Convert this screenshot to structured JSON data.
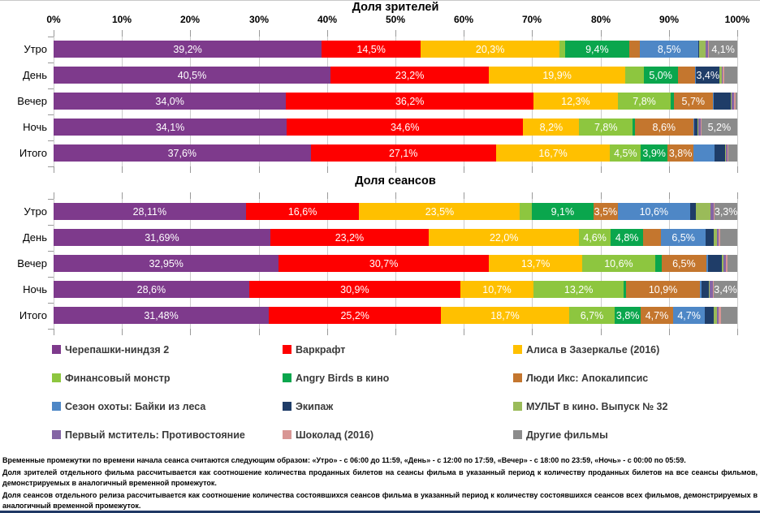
{
  "chart_data": [
    {
      "type": "bar",
      "orientation": "horizontal-stacked",
      "title": "Доля зрителей",
      "categories": [
        "Утро",
        "День",
        "Вечер",
        "Ночь",
        "Итого"
      ],
      "x_axis": {
        "min": 0,
        "max": 100,
        "labels_visible": true,
        "tick_labels": [
          "0%",
          "10%",
          "20%",
          "30%",
          "40%",
          "50%",
          "60%",
          "70%",
          "80%",
          "90%",
          "100%"
        ]
      },
      "series": [
        {
          "film": "Черепашки-ниндзя 2",
          "values": [
            39.2,
            40.5,
            34.0,
            34.1,
            37.6
          ],
          "labels": [
            "39,2%",
            "40,5%",
            "34,0%",
            "34,1%",
            "37,6%"
          ]
        },
        {
          "film": "Варкрафт",
          "values": [
            14.5,
            23.2,
            36.2,
            34.6,
            27.1
          ],
          "labels": [
            "14,5%",
            "23,2%",
            "36,2%",
            "34,6%",
            "27,1%"
          ]
        },
        {
          "film": "Алиса в Зазеркалье (2016)",
          "values": [
            20.3,
            19.9,
            12.3,
            8.2,
            16.7
          ],
          "labels": [
            "20,3%",
            "19,9%",
            "12,3%",
            "8,2%",
            "16,7%"
          ]
        },
        {
          "film": "Финансовый монстр",
          "values": [
            0.8,
            2.7,
            7.8,
            7.8,
            4.5
          ],
          "labels": [
            "",
            "",
            "7,8%",
            "7,8%",
            "4,5%"
          ]
        },
        {
          "film": "Angry Birds в кино",
          "values": [
            9.4,
            5.0,
            0.4,
            0.3,
            3.9
          ],
          "labels": [
            "9,4%",
            "5,0%",
            "",
            "",
            "3,9%"
          ]
        },
        {
          "film": "Люди Икс: Апокалипсис",
          "values": [
            1.6,
            2.5,
            5.7,
            8.6,
            3.8
          ],
          "labels": [
            "",
            "",
            "5,7%",
            "8,6%",
            "3,8%"
          ]
        },
        {
          "film": "Сезон охоты: Байки из леса",
          "values": [
            8.5,
            0.2,
            0.1,
            0.1,
            3.1
          ],
          "labels": [
            "8,5%",
            "",
            "",
            "",
            ""
          ]
        },
        {
          "film": "Экипаж",
          "values": [
            0.1,
            3.4,
            2.5,
            0.5,
            1.5
          ],
          "labels": [
            "",
            "3,4%",
            "",
            "",
            ""
          ]
        },
        {
          "film": "МУЛЬТ в кино. Выпуск № 32",
          "values": [
            1.0,
            0.4,
            0.2,
            0.1,
            0.2
          ],
          "labels": [
            "",
            "",
            "",
            "",
            ""
          ]
        },
        {
          "film": "Первый мститель: Противостояние",
          "values": [
            0.3,
            0.1,
            0.3,
            0.4,
            0.2
          ],
          "labels": [
            "",
            "",
            "",
            "",
            ""
          ]
        },
        {
          "film": "Шоколад (2016)",
          "values": [
            0.2,
            0.2,
            0.2,
            0.1,
            0.1
          ],
          "labels": [
            "",
            "",
            "",
            "",
            ""
          ]
        },
        {
          "film": "Другие фильмы",
          "values": [
            4.1,
            1.9,
            0.3,
            5.2,
            1.3
          ],
          "labels": [
            "4,1%",
            "",
            "",
            "5,2%",
            ""
          ]
        }
      ]
    },
    {
      "type": "bar",
      "orientation": "horizontal-stacked",
      "title": "Доля сеансов",
      "categories": [
        "Утро",
        "День",
        "Вечер",
        "Ночь",
        "Итого"
      ],
      "series": [
        {
          "film": "Черепашки-ниндзя 2",
          "values": [
            28.11,
            31.69,
            32.95,
            28.6,
            31.48
          ],
          "labels": [
            "28,11%",
            "31,69%",
            "32,95%",
            "28,6%",
            "31,48%"
          ]
        },
        {
          "film": "Варкрафт",
          "values": [
            16.6,
            23.2,
            30.7,
            30.9,
            25.2
          ],
          "labels": [
            "16,6%",
            "23,2%",
            "30,7%",
            "30,9%",
            "25,2%"
          ]
        },
        {
          "film": "Алиса в Зазеркалье (2016)",
          "values": [
            23.5,
            22.0,
            13.7,
            10.7,
            18.7
          ],
          "labels": [
            "23,5%",
            "22,0%",
            "13,7%",
            "10,7%",
            "18,7%"
          ]
        },
        {
          "film": "Финансовый монстр",
          "values": [
            1.69,
            4.6,
            10.6,
            13.2,
            6.7
          ],
          "labels": [
            "",
            "4,6%",
            "10,6%",
            "13,2%",
            "6,7%"
          ]
        },
        {
          "film": "Angry Birds в кино",
          "values": [
            9.1,
            4.8,
            1.0,
            0.3,
            3.8
          ],
          "labels": [
            "9,1%",
            "4,8%",
            "",
            "",
            "3,8%"
          ]
        },
        {
          "film": "Люди Икс: Апокалипсис",
          "values": [
            3.5,
            2.6,
            6.5,
            10.9,
            4.7
          ],
          "labels": [
            "3,5%",
            "",
            "6,5%",
            "10,9%",
            "4,7%"
          ]
        },
        {
          "film": "Сезон охоты: Байки из леса",
          "values": [
            10.6,
            6.5,
            0.3,
            0.2,
            4.7
          ],
          "labels": [
            "10,6%",
            "6,5%",
            "",
            "",
            "4,7%"
          ]
        },
        {
          "film": "Экипаж",
          "values": [
            0.8,
            1.2,
            2.0,
            1.0,
            1.3
          ],
          "labels": [
            "",
            "",
            "",
            "",
            ""
          ]
        },
        {
          "film": "МУЛЬТ в кино. Выпуск № 32",
          "values": [
            2.2,
            0.5,
            0.3,
            0.2,
            0.5
          ],
          "labels": [
            "",
            "",
            "",
            "",
            ""
          ]
        },
        {
          "film": "Первый мститель: Противостояние",
          "values": [
            0.4,
            0.2,
            0.3,
            0.5,
            0.2
          ],
          "labels": [
            "",
            "",
            "",
            "",
            ""
          ]
        },
        {
          "film": "Шоколад (2016)",
          "values": [
            0.2,
            0.3,
            0.2,
            0.1,
            0.3
          ],
          "labels": [
            "",
            "",
            "",
            "",
            ""
          ]
        },
        {
          "film": "Другие фильмы",
          "values": [
            3.3,
            2.41,
            1.45,
            3.4,
            2.42
          ],
          "labels": [
            "3,3%",
            "",
            "",
            "3,4%",
            ""
          ]
        }
      ]
    }
  ],
  "legend": {
    "items": [
      {
        "label": "Черепашки-ниндзя 2",
        "color": "#7E3A8C"
      },
      {
        "label": "Варкрафт",
        "color": "#FE0000"
      },
      {
        "label": "Алиса в Зазеркалье (2016)",
        "color": "#FFC000"
      },
      {
        "label": "Финансовый монстр",
        "color": "#8DC63F"
      },
      {
        "label": "Angry Birds в кино",
        "color": "#0AA64D"
      },
      {
        "label": "Люди Икс: Апокалипсис",
        "color": "#C4762E"
      },
      {
        "label": "Сезон охоты: Байки из леса",
        "color": "#4E87C6"
      },
      {
        "label": "Экипаж",
        "color": "#1F3D68"
      },
      {
        "label": "МУЛЬТ в кино. Выпуск № 32",
        "color": "#9ABB59"
      },
      {
        "label": "Первый мститель: Противостояние",
        "color": "#8465A5"
      },
      {
        "label": "Шоколад (2016)",
        "color": "#D89694"
      },
      {
        "label": "Другие фильмы",
        "color": "#8B8B8B"
      }
    ]
  },
  "footnotes": [
    "Временные промежутки по времени начала сеанса считаются следующим образом: «Утро» - с 06:00 до 11:59, «День» - с 12:00 по 17:59, «Вечер» - с 18:00 по 23:59, «Ночь» - с 00:00 по 05:59.",
    "Доля зрителей отдельного фильма рассчитывается как соотношение количества проданных билетов на сеансы фильма в указанный период к количеству проданных билетов на все сеансы фильмов, демонстрируемых в аналогичный временной промежуток.",
    "Доля сеансов отдельного релиза рассчитывается как соотношение количества состоявшихся сеансов фильма в указанный период к количеству состоявшихся сеансов всех фильмов, демонстрируемых в аналогичный временной промежуток."
  ]
}
